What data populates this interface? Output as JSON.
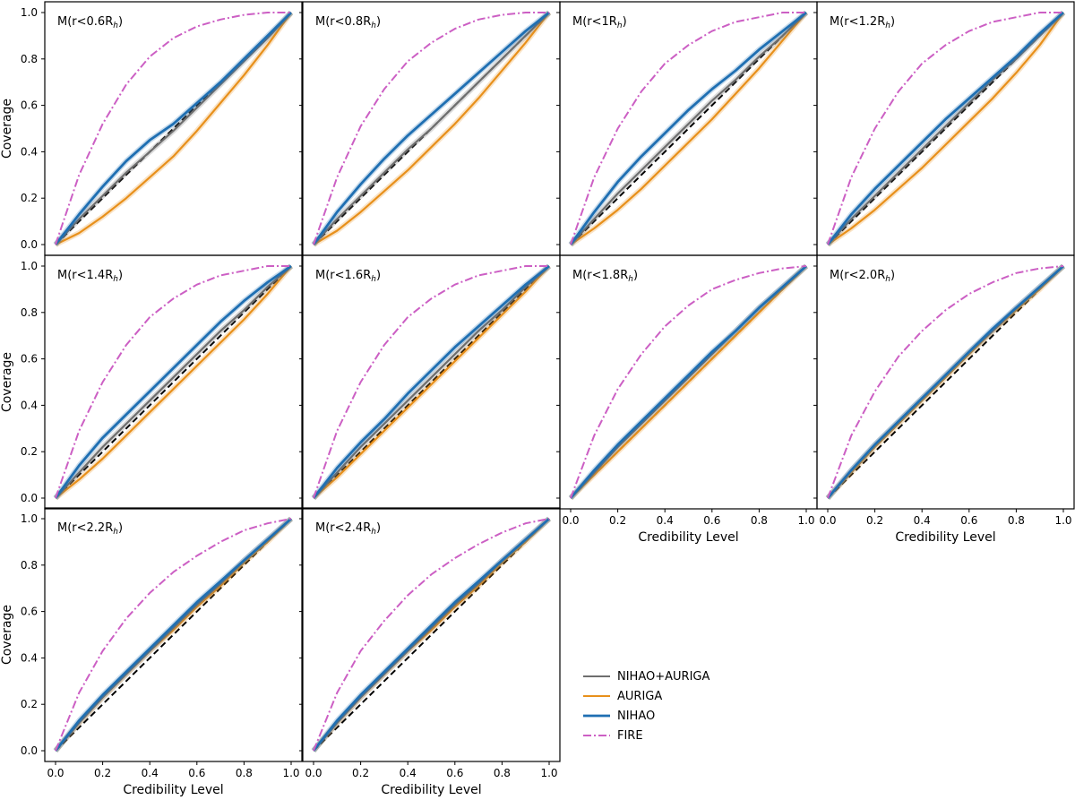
{
  "chart_data": {
    "type": "line",
    "xlabel": "Credibility Level",
    "ylabel": "Coverage",
    "xlim": [
      0,
      1
    ],
    "ylim": [
      0,
      1
    ],
    "ticks": [
      0.0,
      0.2,
      0.4,
      0.6,
      0.8,
      1.0
    ],
    "tick_labels": [
      "0.0",
      "0.2",
      "0.4",
      "0.6",
      "0.8",
      "1.0"
    ],
    "legend": [
      {
        "name": "NIHAO+AURIGA",
        "color": "#6e6e6e",
        "style": "solid"
      },
      {
        "name": "AURIGA",
        "color": "#e8901b",
        "style": "solid"
      },
      {
        "name": "NIHAO",
        "color": "#1f6fb2",
        "style": "solid"
      },
      {
        "name": "FIRE",
        "color": "#cc5fc4",
        "style": "dashdot"
      }
    ],
    "diagonal": {
      "style": "dashed",
      "color": "#000000"
    },
    "panels": [
      {
        "label": "M(r<0.6R",
        "sub": "h",
        "close": ")",
        "x": [
          0,
          0.1,
          0.2,
          0.3,
          0.4,
          0.5,
          0.6,
          0.7,
          0.8,
          0.9,
          1
        ],
        "series": {
          "NIHAO+AURIGA": [
            0,
            0.11,
            0.21,
            0.31,
            0.4,
            0.49,
            0.59,
            0.69,
            0.79,
            0.89,
            1
          ],
          "AURIGA": [
            0,
            0.05,
            0.12,
            0.2,
            0.29,
            0.38,
            0.49,
            0.61,
            0.73,
            0.86,
            1
          ],
          "NIHAO": [
            0,
            0.13,
            0.25,
            0.36,
            0.45,
            0.52,
            0.61,
            0.7,
            0.8,
            0.9,
            1
          ],
          "FIRE": [
            0,
            0.3,
            0.52,
            0.69,
            0.81,
            0.89,
            0.94,
            0.97,
            0.99,
            1,
            1
          ]
        }
      },
      {
        "label": "M(r<0.8R",
        "sub": "h",
        "close": ")",
        "x": [
          0,
          0.1,
          0.2,
          0.3,
          0.4,
          0.5,
          0.6,
          0.7,
          0.8,
          0.9,
          1
        ],
        "series": {
          "NIHAO+AURIGA": [
            0,
            0.11,
            0.21,
            0.31,
            0.41,
            0.5,
            0.6,
            0.7,
            0.8,
            0.9,
            1
          ],
          "AURIGA": [
            0,
            0.06,
            0.14,
            0.23,
            0.32,
            0.42,
            0.52,
            0.63,
            0.75,
            0.87,
            1
          ],
          "NIHAO": [
            0,
            0.14,
            0.26,
            0.37,
            0.47,
            0.56,
            0.65,
            0.74,
            0.83,
            0.92,
            1
          ],
          "FIRE": [
            0,
            0.29,
            0.51,
            0.67,
            0.79,
            0.87,
            0.93,
            0.97,
            0.99,
            1,
            1
          ]
        }
      },
      {
        "label": "M(r<1R",
        "sub": "h",
        "close": ")",
        "x": [
          0,
          0.1,
          0.2,
          0.3,
          0.4,
          0.5,
          0.6,
          0.7,
          0.8,
          0.9,
          1
        ],
        "series": {
          "NIHAO+AURIGA": [
            0,
            0.11,
            0.22,
            0.32,
            0.42,
            0.52,
            0.62,
            0.71,
            0.81,
            0.9,
            1
          ],
          "AURIGA": [
            0,
            0.07,
            0.15,
            0.24,
            0.34,
            0.44,
            0.54,
            0.65,
            0.76,
            0.88,
            1
          ],
          "NIHAO": [
            0,
            0.14,
            0.27,
            0.38,
            0.48,
            0.58,
            0.67,
            0.75,
            0.84,
            0.92,
            1
          ],
          "FIRE": [
            0,
            0.29,
            0.5,
            0.66,
            0.78,
            0.86,
            0.92,
            0.96,
            0.98,
            1,
            1
          ]
        }
      },
      {
        "label": "M(r<1.2R",
        "sub": "h",
        "close": ")",
        "x": [
          0,
          0.1,
          0.2,
          0.3,
          0.4,
          0.5,
          0.6,
          0.7,
          0.8,
          0.9,
          1
        ],
        "series": {
          "NIHAO+AURIGA": [
            0,
            0.11,
            0.21,
            0.31,
            0.41,
            0.51,
            0.61,
            0.71,
            0.8,
            0.9,
            1
          ],
          "AURIGA": [
            0,
            0.07,
            0.15,
            0.24,
            0.33,
            0.43,
            0.53,
            0.63,
            0.74,
            0.86,
            1
          ],
          "NIHAO": [
            0,
            0.13,
            0.24,
            0.34,
            0.44,
            0.54,
            0.63,
            0.72,
            0.81,
            0.91,
            1
          ],
          "FIRE": [
            0,
            0.29,
            0.5,
            0.66,
            0.78,
            0.86,
            0.92,
            0.96,
            0.98,
            1,
            1
          ]
        }
      },
      {
        "label": "M(r<1.4R",
        "sub": "h",
        "close": ")",
        "x": [
          0,
          0.1,
          0.2,
          0.3,
          0.4,
          0.5,
          0.6,
          0.7,
          0.8,
          0.9,
          1
        ],
        "series": {
          "NIHAO+AURIGA": [
            0,
            0.11,
            0.22,
            0.32,
            0.42,
            0.52,
            0.62,
            0.72,
            0.81,
            0.91,
            1
          ],
          "AURIGA": [
            0,
            0.08,
            0.17,
            0.27,
            0.37,
            0.47,
            0.57,
            0.67,
            0.77,
            0.88,
            1
          ],
          "NIHAO": [
            0,
            0.14,
            0.26,
            0.36,
            0.46,
            0.56,
            0.66,
            0.76,
            0.85,
            0.93,
            1
          ],
          "FIRE": [
            0,
            0.29,
            0.5,
            0.66,
            0.78,
            0.86,
            0.92,
            0.96,
            0.98,
            1,
            1
          ]
        }
      },
      {
        "label": "M(r<1.6R",
        "sub": "h",
        "close": ")",
        "x": [
          0,
          0.1,
          0.2,
          0.3,
          0.4,
          0.5,
          0.6,
          0.7,
          0.8,
          0.9,
          1
        ],
        "series": {
          "NIHAO+AURIGA": [
            0,
            0.11,
            0.22,
            0.32,
            0.42,
            0.52,
            0.62,
            0.72,
            0.81,
            0.91,
            1
          ],
          "AURIGA": [
            0,
            0.09,
            0.19,
            0.29,
            0.39,
            0.49,
            0.59,
            0.69,
            0.79,
            0.89,
            1
          ],
          "NIHAO": [
            0,
            0.13,
            0.24,
            0.34,
            0.45,
            0.55,
            0.65,
            0.74,
            0.83,
            0.92,
            1
          ],
          "FIRE": [
            0,
            0.29,
            0.5,
            0.66,
            0.78,
            0.86,
            0.92,
            0.96,
            0.98,
            1,
            1
          ]
        }
      },
      {
        "label": "M(r<1.8R",
        "sub": "h",
        "close": ")",
        "x": [
          0,
          0.1,
          0.2,
          0.3,
          0.4,
          0.5,
          0.6,
          0.7,
          0.8,
          0.9,
          1
        ],
        "series": {
          "NIHAO+AURIGA": [
            0,
            0.11,
            0.22,
            0.32,
            0.42,
            0.52,
            0.62,
            0.72,
            0.82,
            0.91,
            1
          ],
          "AURIGA": [
            0,
            0.1,
            0.2,
            0.3,
            0.4,
            0.5,
            0.6,
            0.7,
            0.8,
            0.9,
            1
          ],
          "NIHAO": [
            0,
            0.12,
            0.23,
            0.33,
            0.43,
            0.53,
            0.63,
            0.72,
            0.82,
            0.91,
            1
          ],
          "FIRE": [
            0,
            0.27,
            0.47,
            0.62,
            0.74,
            0.83,
            0.9,
            0.94,
            0.97,
            0.99,
            1
          ]
        }
      },
      {
        "label": "M(r<2.0R",
        "sub": "h",
        "close": ")",
        "x": [
          0,
          0.1,
          0.2,
          0.3,
          0.4,
          0.5,
          0.6,
          0.7,
          0.8,
          0.9,
          1
        ],
        "series": {
          "NIHAO+AURIGA": [
            0,
            0.12,
            0.23,
            0.33,
            0.43,
            0.53,
            0.63,
            0.72,
            0.82,
            0.91,
            1
          ],
          "AURIGA": [
            0,
            0.11,
            0.22,
            0.32,
            0.42,
            0.52,
            0.62,
            0.72,
            0.81,
            0.9,
            1
          ],
          "NIHAO": [
            0,
            0.12,
            0.23,
            0.33,
            0.43,
            0.53,
            0.63,
            0.73,
            0.82,
            0.91,
            1
          ],
          "FIRE": [
            0,
            0.27,
            0.46,
            0.61,
            0.72,
            0.81,
            0.88,
            0.93,
            0.97,
            0.99,
            1
          ]
        }
      },
      {
        "label": "M(r<2.2R",
        "sub": "h",
        "close": ")",
        "x": [
          0,
          0.1,
          0.2,
          0.3,
          0.4,
          0.5,
          0.6,
          0.7,
          0.8,
          0.9,
          1
        ],
        "series": {
          "NIHAO+AURIGA": [
            0,
            0.12,
            0.23,
            0.33,
            0.43,
            0.53,
            0.63,
            0.72,
            0.82,
            0.91,
            1
          ],
          "AURIGA": [
            0,
            0.12,
            0.23,
            0.33,
            0.43,
            0.52,
            0.62,
            0.71,
            0.81,
            0.9,
            1
          ],
          "NIHAO": [
            0,
            0.13,
            0.24,
            0.34,
            0.44,
            0.54,
            0.64,
            0.73,
            0.82,
            0.91,
            1
          ],
          "FIRE": [
            0,
            0.25,
            0.43,
            0.57,
            0.68,
            0.77,
            0.84,
            0.9,
            0.95,
            0.98,
            1
          ]
        }
      },
      {
        "label": "M(r<2.4R",
        "sub": "h",
        "close": ")",
        "x": [
          0,
          0.1,
          0.2,
          0.3,
          0.4,
          0.5,
          0.6,
          0.7,
          0.8,
          0.9,
          1
        ],
        "series": {
          "NIHAO+AURIGA": [
            0,
            0.12,
            0.23,
            0.33,
            0.43,
            0.53,
            0.63,
            0.72,
            0.82,
            0.91,
            1
          ],
          "AURIGA": [
            0,
            0.12,
            0.23,
            0.33,
            0.43,
            0.52,
            0.62,
            0.71,
            0.81,
            0.9,
            1
          ],
          "NIHAO": [
            0,
            0.13,
            0.24,
            0.34,
            0.44,
            0.54,
            0.64,
            0.73,
            0.82,
            0.91,
            1
          ],
          "FIRE": [
            0,
            0.25,
            0.43,
            0.56,
            0.67,
            0.76,
            0.83,
            0.89,
            0.94,
            0.98,
            1
          ]
        }
      }
    ]
  }
}
